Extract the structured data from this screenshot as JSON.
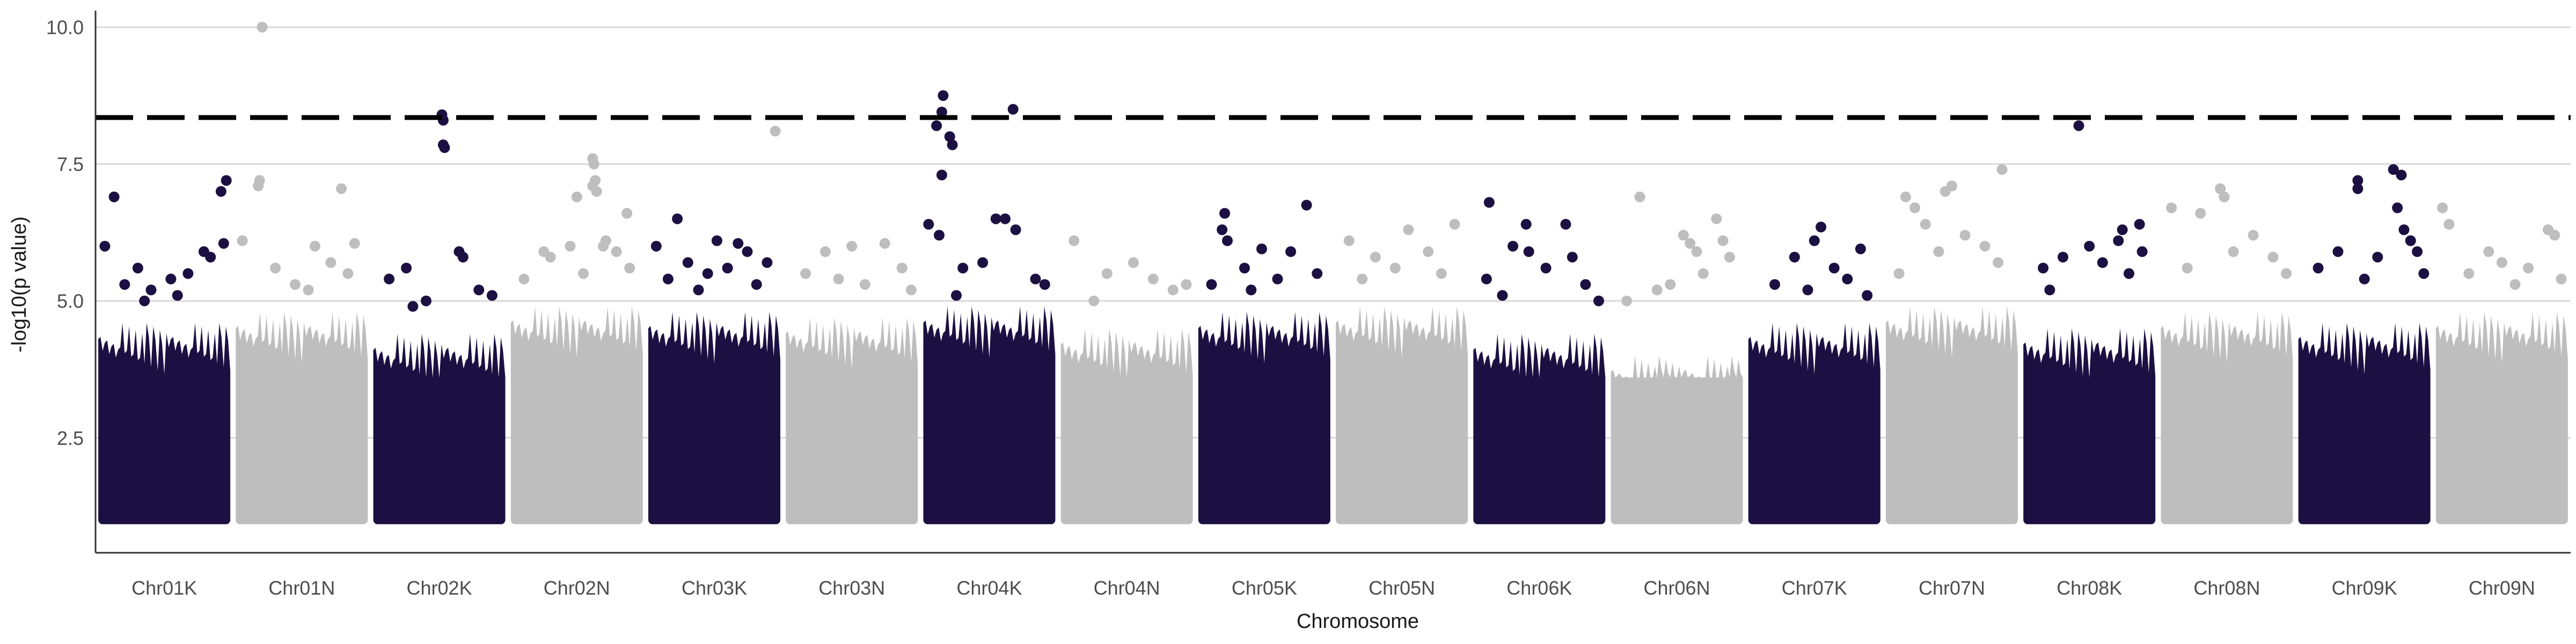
{
  "chart_data": {
    "type": "scatter",
    "title": "",
    "xlabel": "Chromosome",
    "ylabel": "-log10(p value)",
    "ylim": [
      0.4,
      10.3
    ],
    "yticks": [
      2.5,
      5.0,
      7.5,
      10.0
    ],
    "ytick_labels": [
      "2.5",
      "5.0",
      "7.5",
      "10.0"
    ],
    "grid": "horizontal major",
    "legend": "none",
    "threshold": 8.35,
    "colors": {
      "dark": "#1c1042",
      "light": "#bebebe",
      "grid": "#d9d9d9",
      "threshold": "#000000",
      "axis": "#333333"
    },
    "categories": [
      "Chr01K",
      "Chr01N",
      "Chr02K",
      "Chr02N",
      "Chr03K",
      "Chr03N",
      "Chr04K",
      "Chr04N",
      "Chr05K",
      "Chr05N",
      "Chr06K",
      "Chr06N",
      "Chr07K",
      "Chr07N",
      "Chr08K",
      "Chr08N",
      "Chr09K",
      "Chr09N"
    ],
    "series": [
      {
        "chromosome": "Chr01K",
        "color": "dark",
        "band_max": 4.6,
        "points": [
          [
            0.12,
            6.9
          ],
          [
            0.93,
            7.0
          ],
          [
            0.97,
            7.2
          ],
          [
            0.3,
            5.6
          ],
          [
            0.55,
            5.4
          ],
          [
            0.8,
            5.9
          ],
          [
            0.05,
            6.0
          ],
          [
            0.95,
            6.05
          ],
          [
            0.4,
            5.2
          ],
          [
            0.2,
            5.3
          ],
          [
            0.68,
            5.5
          ],
          [
            0.85,
            5.8
          ],
          [
            0.6,
            5.1
          ],
          [
            0.35,
            5.0
          ]
        ]
      },
      {
        "chromosome": "Chr01N",
        "color": "light",
        "band_max": 4.8,
        "points": [
          [
            0.2,
            10.0
          ],
          [
            0.18,
            7.2
          ],
          [
            0.17,
            7.1
          ],
          [
            0.8,
            7.05
          ],
          [
            0.05,
            6.1
          ],
          [
            0.6,
            6.0
          ],
          [
            0.9,
            6.05
          ],
          [
            0.3,
            5.6
          ],
          [
            0.45,
            5.3
          ],
          [
            0.72,
            5.7
          ],
          [
            0.85,
            5.5
          ],
          [
            0.55,
            5.2
          ]
        ]
      },
      {
        "chromosome": "Chr02K",
        "color": "dark",
        "band_max": 4.4,
        "points": [
          [
            0.52,
            8.4
          ],
          [
            0.53,
            8.3
          ],
          [
            0.53,
            7.85
          ],
          [
            0.54,
            7.8
          ],
          [
            0.65,
            5.9
          ],
          [
            0.25,
            5.6
          ],
          [
            0.68,
            5.8
          ],
          [
            0.12,
            5.4
          ],
          [
            0.8,
            5.2
          ],
          [
            0.4,
            5.0
          ],
          [
            0.9,
            5.1
          ],
          [
            0.3,
            4.9
          ]
        ]
      },
      {
        "chromosome": "Chr02N",
        "color": "light",
        "band_max": 4.9,
        "points": [
          [
            0.62,
            7.6
          ],
          [
            0.63,
            7.5
          ],
          [
            0.64,
            7.2
          ],
          [
            0.62,
            7.1
          ],
          [
            0.65,
            7.0
          ],
          [
            0.5,
            6.9
          ],
          [
            0.88,
            6.6
          ],
          [
            0.7,
            6.0
          ],
          [
            0.72,
            6.1
          ],
          [
            0.25,
            5.9
          ],
          [
            0.3,
            5.8
          ],
          [
            0.45,
            6.0
          ],
          [
            0.8,
            5.9
          ],
          [
            0.9,
            5.6
          ],
          [
            0.1,
            5.4
          ],
          [
            0.55,
            5.5
          ]
        ]
      },
      {
        "chromosome": "Chr03K",
        "color": "dark",
        "band_max": 4.8,
        "points": [
          [
            0.22,
            6.5
          ],
          [
            0.52,
            6.1
          ],
          [
            0.68,
            6.05
          ],
          [
            0.75,
            5.9
          ],
          [
            0.06,
            6.0
          ],
          [
            0.3,
            5.7
          ],
          [
            0.9,
            5.7
          ],
          [
            0.45,
            5.5
          ],
          [
            0.6,
            5.6
          ],
          [
            0.82,
            5.3
          ],
          [
            0.15,
            5.4
          ],
          [
            0.38,
            5.2
          ]
        ]
      },
      {
        "chromosome": "Chr03N",
        "color": "light",
        "band_max": 4.7,
        "points": [
          [
            -0.08,
            8.1
          ],
          [
            0.5,
            6.0
          ],
          [
            0.3,
            5.9
          ],
          [
            0.75,
            6.05
          ],
          [
            0.88,
            5.6
          ],
          [
            0.15,
            5.5
          ],
          [
            0.6,
            5.3
          ],
          [
            0.4,
            5.4
          ],
          [
            0.95,
            5.2
          ]
        ]
      },
      {
        "chromosome": "Chr04K",
        "color": "dark",
        "band_max": 4.9,
        "points": [
          [
            0.15,
            8.75
          ],
          [
            0.14,
            8.45
          ],
          [
            0.68,
            8.5
          ],
          [
            0.1,
            8.2
          ],
          [
            0.2,
            8.0
          ],
          [
            0.22,
            7.85
          ],
          [
            0.14,
            7.3
          ],
          [
            0.04,
            6.4
          ],
          [
            0.12,
            6.2
          ],
          [
            0.55,
            6.5
          ],
          [
            0.62,
            6.5
          ],
          [
            0.7,
            6.3
          ],
          [
            0.3,
            5.6
          ],
          [
            0.45,
            5.7
          ],
          [
            0.85,
            5.4
          ],
          [
            0.92,
            5.3
          ],
          [
            0.25,
            5.1
          ]
        ]
      },
      {
        "chromosome": "Chr04N",
        "color": "light",
        "band_max": 4.5,
        "points": [
          [
            0.1,
            6.1
          ],
          [
            0.55,
            5.7
          ],
          [
            0.35,
            5.5
          ],
          [
            0.7,
            5.4
          ],
          [
            0.85,
            5.2
          ],
          [
            0.25,
            5.0
          ],
          [
            0.95,
            5.3
          ]
        ]
      },
      {
        "chromosome": "Chr05K",
        "color": "dark",
        "band_max": 4.8,
        "points": [
          [
            0.2,
            6.6
          ],
          [
            0.82,
            6.75
          ],
          [
            0.18,
            6.3
          ],
          [
            0.22,
            6.1
          ],
          [
            0.48,
            5.95
          ],
          [
            0.7,
            5.9
          ],
          [
            0.35,
            5.6
          ],
          [
            0.9,
            5.5
          ],
          [
            0.1,
            5.3
          ],
          [
            0.6,
            5.4
          ],
          [
            0.4,
            5.2
          ]
        ]
      },
      {
        "chromosome": "Chr05N",
        "color": "light",
        "band_max": 4.9,
        "points": [
          [
            0.55,
            6.3
          ],
          [
            0.9,
            6.4
          ],
          [
            0.1,
            6.1
          ],
          [
            0.3,
            5.8
          ],
          [
            0.7,
            5.9
          ],
          [
            0.45,
            5.6
          ],
          [
            0.8,
            5.5
          ],
          [
            0.2,
            5.4
          ]
        ]
      },
      {
        "chromosome": "Chr06K",
        "color": "dark",
        "band_max": 4.4,
        "points": [
          [
            0.12,
            6.8
          ],
          [
            0.4,
            6.4
          ],
          [
            0.7,
            6.4
          ],
          [
            0.3,
            6.0
          ],
          [
            0.42,
            5.9
          ],
          [
            0.75,
            5.8
          ],
          [
            0.1,
            5.4
          ],
          [
            0.55,
            5.6
          ],
          [
            0.85,
            5.3
          ],
          [
            0.22,
            5.1
          ],
          [
            0.95,
            5.0
          ]
        ]
      },
      {
        "chromosome": "Chr06N",
        "color": "light",
        "band_max": 4.0,
        "points": [
          [
            0.22,
            6.9
          ],
          [
            0.8,
            6.5
          ],
          [
            0.55,
            6.2
          ],
          [
            0.6,
            6.05
          ],
          [
            0.65,
            5.9
          ],
          [
            0.85,
            6.1
          ],
          [
            0.9,
            5.8
          ],
          [
            0.35,
            5.2
          ],
          [
            0.7,
            5.5
          ],
          [
            0.45,
            5.3
          ],
          [
            0.12,
            5.0
          ]
        ]
      },
      {
        "chromosome": "Chr07K",
        "color": "dark",
        "band_max": 4.6,
        "points": [
          [
            0.55,
            6.35
          ],
          [
            0.5,
            6.1
          ],
          [
            0.85,
            5.95
          ],
          [
            0.35,
            5.8
          ],
          [
            0.65,
            5.6
          ],
          [
            0.2,
            5.3
          ],
          [
            0.75,
            5.4
          ],
          [
            0.45,
            5.2
          ],
          [
            0.9,
            5.1
          ]
        ]
      },
      {
        "chromosome": "Chr07N",
        "color": "light",
        "band_max": 4.9,
        "points": [
          [
            0.88,
            7.4
          ],
          [
            0.5,
            7.1
          ],
          [
            0.45,
            7.0
          ],
          [
            0.15,
            6.9
          ],
          [
            0.22,
            6.7
          ],
          [
            0.3,
            6.4
          ],
          [
            0.6,
            6.2
          ],
          [
            0.75,
            6.0
          ],
          [
            0.4,
            5.9
          ],
          [
            0.85,
            5.7
          ],
          [
            0.1,
            5.5
          ]
        ]
      },
      {
        "chromosome": "Chr08K",
        "color": "dark",
        "band_max": 4.5,
        "points": [
          [
            0.42,
            8.2
          ],
          [
            0.75,
            6.3
          ],
          [
            0.88,
            6.4
          ],
          [
            0.72,
            6.1
          ],
          [
            0.5,
            6.0
          ],
          [
            0.3,
            5.8
          ],
          [
            0.6,
            5.7
          ],
          [
            0.15,
            5.6
          ],
          [
            0.9,
            5.9
          ],
          [
            0.2,
            5.2
          ],
          [
            0.8,
            5.5
          ]
        ]
      },
      {
        "chromosome": "Chr08N",
        "color": "light",
        "band_max": 4.8,
        "points": [
          [
            0.45,
            7.05
          ],
          [
            0.48,
            6.9
          ],
          [
            0.08,
            6.7
          ],
          [
            0.3,
            6.6
          ],
          [
            0.7,
            6.2
          ],
          [
            0.55,
            5.9
          ],
          [
            0.85,
            5.8
          ],
          [
            0.2,
            5.6
          ],
          [
            0.95,
            5.5
          ]
        ]
      },
      {
        "chromosome": "Chr09K",
        "color": "dark",
        "band_max": 4.6,
        "points": [
          [
            0.45,
            7.2
          ],
          [
            0.45,
            7.05
          ],
          [
            0.72,
            7.4
          ],
          [
            0.78,
            7.3
          ],
          [
            0.8,
            6.3
          ],
          [
            0.85,
            6.1
          ],
          [
            0.75,
            6.7
          ],
          [
            0.9,
            5.9
          ],
          [
            0.6,
            5.8
          ],
          [
            0.3,
            5.9
          ],
          [
            0.15,
            5.6
          ],
          [
            0.5,
            5.4
          ],
          [
            0.95,
            5.5
          ]
        ]
      },
      {
        "chromosome": "Chr09N",
        "color": "light",
        "band_max": 4.8,
        "points": [
          [
            0.05,
            6.7
          ],
          [
            0.1,
            6.4
          ],
          [
            0.85,
            6.3
          ],
          [
            0.9,
            6.2
          ],
          [
            0.4,
            5.9
          ],
          [
            0.5,
            5.7
          ],
          [
            0.7,
            5.6
          ],
          [
            0.25,
            5.5
          ],
          [
            0.6,
            5.3
          ],
          [
            0.95,
            5.4
          ]
        ]
      }
    ]
  }
}
